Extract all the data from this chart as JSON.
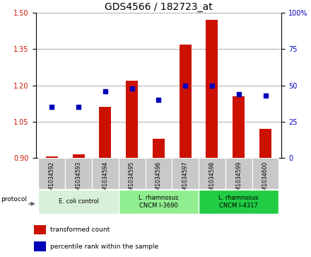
{
  "title": "GDS4566 / 182723_at",
  "samples": [
    "GSM1034592",
    "GSM1034593",
    "GSM1034594",
    "GSM1034595",
    "GSM1034596",
    "GSM1034597",
    "GSM1034598",
    "GSM1034599",
    "GSM1034600"
  ],
  "transformed_count": [
    0.906,
    0.916,
    1.11,
    1.22,
    0.98,
    1.37,
    1.47,
    1.155,
    1.02
  ],
  "percentile_rank": [
    35,
    35,
    46,
    48,
    40,
    50,
    50,
    44,
    43
  ],
  "ylim_left": [
    0.9,
    1.5
  ],
  "ylim_right": [
    0,
    100
  ],
  "yticks_left": [
    0.9,
    1.05,
    1.2,
    1.35,
    1.5
  ],
  "yticks_right": [
    0,
    25,
    50,
    75,
    100
  ],
  "bar_color": "#cc1100",
  "dot_color": "#0000bb",
  "groups": [
    {
      "label": "E. coli control",
      "indices": [
        0,
        1,
        2
      ],
      "color": "#d8f0d8"
    },
    {
      "label": "L. rhamnosus\nCNCM I-3690",
      "indices": [
        3,
        4,
        5
      ],
      "color": "#90ee90"
    },
    {
      "label": "L. rhamnosus\nCNCM I-4317",
      "indices": [
        6,
        7,
        8
      ],
      "color": "#22cc44"
    }
  ],
  "legend_items": [
    {
      "label": "transformed count",
      "color": "#cc1100"
    },
    {
      "label": "percentile rank within the sample",
      "color": "#0000bb"
    }
  ],
  "title_fontsize": 10,
  "tick_fontsize": 7,
  "bar_width": 0.45,
  "dot_size": 20,
  "background_color": "#ffffff",
  "xlabels_bg": "#c8c8c8",
  "xlabels_divider": "#ffffff"
}
